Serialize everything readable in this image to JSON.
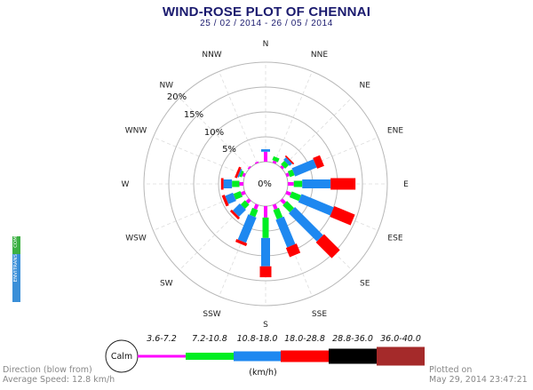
{
  "header": {
    "title": "WIND-ROSE PLOT OF CHENNAI",
    "date_range": "25 / 02 / 2014 - 26 / 05 / 2014"
  },
  "brand": {
    "part1": "ENVITRANS",
    "part2": "COM",
    "colors": {
      "envitrans": "#3a8fd8",
      "com": "#3cb043"
    }
  },
  "footer": {
    "direction_note": "Direction (blow from)",
    "average_speed": "Average Speed: 12.8 km/h",
    "plotted_on_label": "Plotted on",
    "plotted_on_value": "May 29, 2014 23:47:21"
  },
  "legend": {
    "calm_label": "Calm",
    "unit": "(km/h)",
    "bins": [
      {
        "label": "3.6-7.2",
        "color": "#ff00ff"
      },
      {
        "label": "7.2-10.8",
        "color": "#00ee22"
      },
      {
        "label": "10.8-18.0",
        "color": "#1e88f0"
      },
      {
        "label": "18.0-28.8",
        "color": "#ff0000"
      },
      {
        "label": "28.8-36.0",
        "color": "#000000"
      },
      {
        "label": "36.0-40.0",
        "color": "#a52a2a"
      }
    ]
  },
  "chart_data": {
    "type": "windrose",
    "title": "WIND-ROSE PLOT OF CHENNAI",
    "subtitle": "25 / 02 / 2014 - 26 / 05 / 2014",
    "directions": [
      "N",
      "NNE",
      "NE",
      "ENE",
      "E",
      "ESE",
      "SE",
      "SSE",
      "S",
      "SSW",
      "SW",
      "WSW",
      "W",
      "WNW",
      "NW",
      "NNW"
    ],
    "radial_ticks": [
      "0%",
      "5%",
      "10%",
      "15%",
      "20%"
    ],
    "radial_max": 20,
    "speed_bins_kmh": [
      "3.6-7.2",
      "7.2-10.8",
      "10.8-18.0",
      "18.0-28.8",
      "28.8-36.0",
      "36.0-40.0"
    ],
    "series": [
      {
        "name": "3.6-7.2",
        "values": [
          2.0,
          0.5,
          0.5,
          0.6,
          1.2,
          1.0,
          1.0,
          1.0,
          2.3,
          1.0,
          0.8,
          0.8,
          0.8,
          0.5,
          0.3,
          0.3
        ]
      },
      {
        "name": "7.2-10.8",
        "values": [
          0.0,
          0.8,
          1.0,
          1.0,
          1.7,
          2.0,
          2.0,
          2.0,
          4.1,
          1.5,
          1.2,
          1.5,
          1.5,
          0.5,
          0.0,
          0.0
        ]
      },
      {
        "name": "10.8-18.0",
        "values": [
          0.5,
          0.0,
          0.7,
          4.7,
          5.7,
          7.0,
          8.0,
          6.0,
          5.7,
          5.5,
          2.0,
          1.7,
          1.7,
          0.3,
          0.0,
          0.0
        ]
      },
      {
        "name": "18.0-28.8",
        "values": [
          0.0,
          0.0,
          0.3,
          1.5,
          5.0,
          4.5,
          4.5,
          2.0,
          2.2,
          0.6,
          0.5,
          0.6,
          0.5,
          0.5,
          0.0,
          0.0
        ]
      },
      {
        "name": "28.8-36.0",
        "values": [
          0,
          0,
          0,
          0,
          0,
          0,
          0,
          0,
          0,
          0,
          0,
          0,
          0,
          0,
          0,
          0
        ]
      },
      {
        "name": "36.0-40.0",
        "values": [
          0,
          0,
          0,
          0,
          0,
          0,
          0,
          0,
          0,
          0,
          0,
          0,
          0,
          0,
          0,
          0
        ]
      }
    ],
    "calm_label": "Calm",
    "average_speed_kmh": 12.8
  }
}
